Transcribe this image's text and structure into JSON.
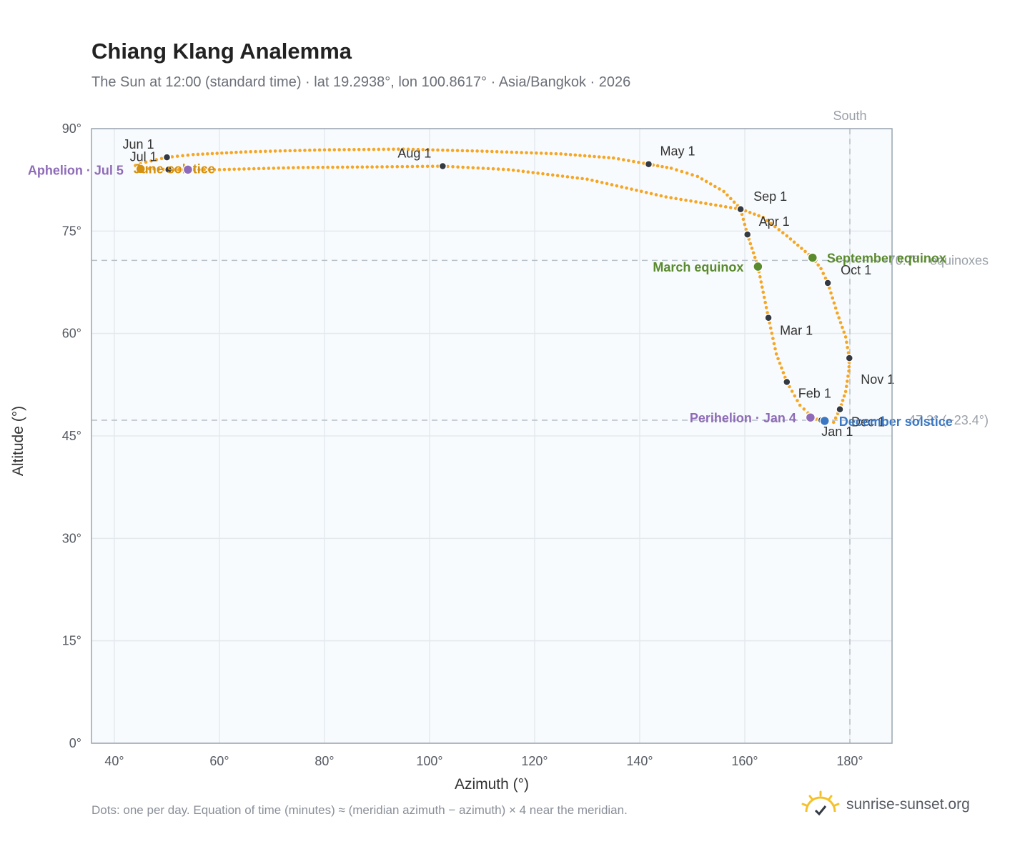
{
  "title": "Chiang Klang Analemma",
  "subtitle": "The Sun at 12:00 (standard time) · lat 19.2938°, lon 100.8617° · Asia/Bangkok · 2026",
  "footnote": "Dots: one per day. Equation of time (minutes) ≈ (meridian azimuth − azimuth) × 4 near the meridian.",
  "brand": {
    "text": "sunrise-sunset.org",
    "icon": "sun-logo-icon"
  },
  "colors": {
    "path": "#f5a623",
    "month_dot": "#333a44",
    "equinox": "#5a8a2e",
    "solstice_june": "#d4900f",
    "solstice_december": "#3b78c3",
    "apsis": "#8e6bb8",
    "reference": "#b8c0c8",
    "plot_bg": "#f8fbfd",
    "grid": "#e4e9ee",
    "frame": "#9aa5b1"
  },
  "chart_data": {
    "type": "scatter",
    "title": "Chiang Klang Analemma",
    "xlabel": "Azimuth (°)",
    "ylabel": "Altitude (°)",
    "xlim": [
      36,
      188
    ],
    "ylim": [
      0,
      90
    ],
    "x_ticks": [
      40,
      60,
      80,
      100,
      120,
      140,
      160,
      180
    ],
    "y_ticks": [
      0,
      15,
      30,
      45,
      60,
      75,
      90
    ],
    "x_tick_suffix": "°",
    "y_tick_suffix": "°",
    "grid": true,
    "path": [
      [
        176.9,
        47.0
      ],
      [
        178.1,
        48.9
      ],
      [
        179.2,
        51.5
      ],
      [
        179.8,
        54.5
      ],
      [
        179.9,
        56.4
      ],
      [
        179.2,
        59.5
      ],
      [
        177.6,
        63.0
      ],
      [
        175.8,
        67.4
      ],
      [
        174.5,
        69.5
      ],
      [
        172.9,
        71.1
      ],
      [
        168.0,
        74.3
      ],
      [
        163.5,
        77.0
      ],
      [
        159.3,
        78.2
      ],
      [
        156.0,
        80.8
      ],
      [
        151.0,
        83.0
      ],
      [
        146.0,
        84.2
      ],
      [
        141.7,
        84.8
      ],
      [
        135.0,
        85.7
      ],
      [
        125.0,
        86.3
      ],
      [
        110.0,
        86.7
      ],
      [
        95.0,
        87.0
      ],
      [
        80.0,
        86.9
      ],
      [
        65.0,
        86.6
      ],
      [
        55.0,
        86.2
      ],
      [
        50.0,
        85.8
      ],
      [
        46.0,
        85.1
      ],
      [
        44.0,
        84.6
      ],
      [
        44.8,
        84.2
      ],
      [
        50.3,
        84.0
      ],
      [
        60.0,
        84.0
      ],
      [
        75.0,
        84.3
      ],
      [
        90.0,
        84.4
      ],
      [
        102.5,
        84.5
      ],
      [
        115.0,
        84.0
      ],
      [
        130.0,
        82.6
      ],
      [
        145.0,
        80.0
      ],
      [
        159.2,
        78.2
      ],
      [
        160.5,
        74.5
      ],
      [
        162.5,
        69.8
      ],
      [
        164.5,
        62.3
      ],
      [
        166.0,
        57.0
      ],
      [
        168.0,
        52.9
      ],
      [
        170.5,
        49.5
      ],
      [
        172.8,
        47.8
      ],
      [
        174.8,
        47.1
      ],
      [
        176.9,
        47.0
      ]
    ],
    "month_markers": [
      {
        "label": "Jan 1",
        "azimuth": 174.6,
        "altitude": 47.3
      },
      {
        "label": "Feb 1",
        "azimuth": 168.0,
        "altitude": 52.9
      },
      {
        "label": "Mar 1",
        "azimuth": 164.5,
        "altitude": 62.3
      },
      {
        "label": "Apr 1",
        "azimuth": 160.5,
        "altitude": 74.5
      },
      {
        "label": "May 1",
        "azimuth": 141.7,
        "altitude": 84.8
      },
      {
        "label": "Jun 1",
        "azimuth": 50.0,
        "altitude": 85.8
      },
      {
        "label": "Jul 1",
        "azimuth": 50.3,
        "altitude": 84.0
      },
      {
        "label": "Aug 1",
        "azimuth": 102.5,
        "altitude": 84.5
      },
      {
        "label": "Sep 1",
        "azimuth": 159.2,
        "altitude": 78.2
      },
      {
        "label": "Oct 1",
        "azimuth": 175.8,
        "altitude": 67.4
      },
      {
        "label": "Nov 1",
        "azimuth": 179.9,
        "altitude": 56.4
      },
      {
        "label": "Dec 1",
        "azimuth": 178.1,
        "altitude": 48.9
      }
    ],
    "events": [
      {
        "label": "March equinox",
        "azimuth": 162.5,
        "altitude": 69.8,
        "kind": "equinox"
      },
      {
        "label": "September equinox",
        "azimuth": 172.9,
        "altitude": 71.1,
        "kind": "equinox"
      },
      {
        "label": "June solstice",
        "azimuth": 45.0,
        "altitude": 84.1,
        "kind": "solstice_june"
      },
      {
        "label": "December solstice",
        "azimuth": 175.2,
        "altitude": 47.2,
        "kind": "solstice_december"
      },
      {
        "label": "Aphelion · Jul 5",
        "azimuth": 54.0,
        "altitude": 84.0,
        "kind": "apsis"
      },
      {
        "label": "Perihelion · Jan 4",
        "azimuth": 172.5,
        "altitude": 47.7,
        "kind": "apsis"
      }
    ],
    "reference_lines": [
      {
        "orientation": "vertical",
        "value": 180,
        "label": "South"
      },
      {
        "orientation": "horizontal",
        "value": 70.7,
        "label": "70.7° · equinoxes"
      },
      {
        "orientation": "horizontal",
        "value": 47.3,
        "label": "47.3° (−23.4°)"
      }
    ]
  }
}
